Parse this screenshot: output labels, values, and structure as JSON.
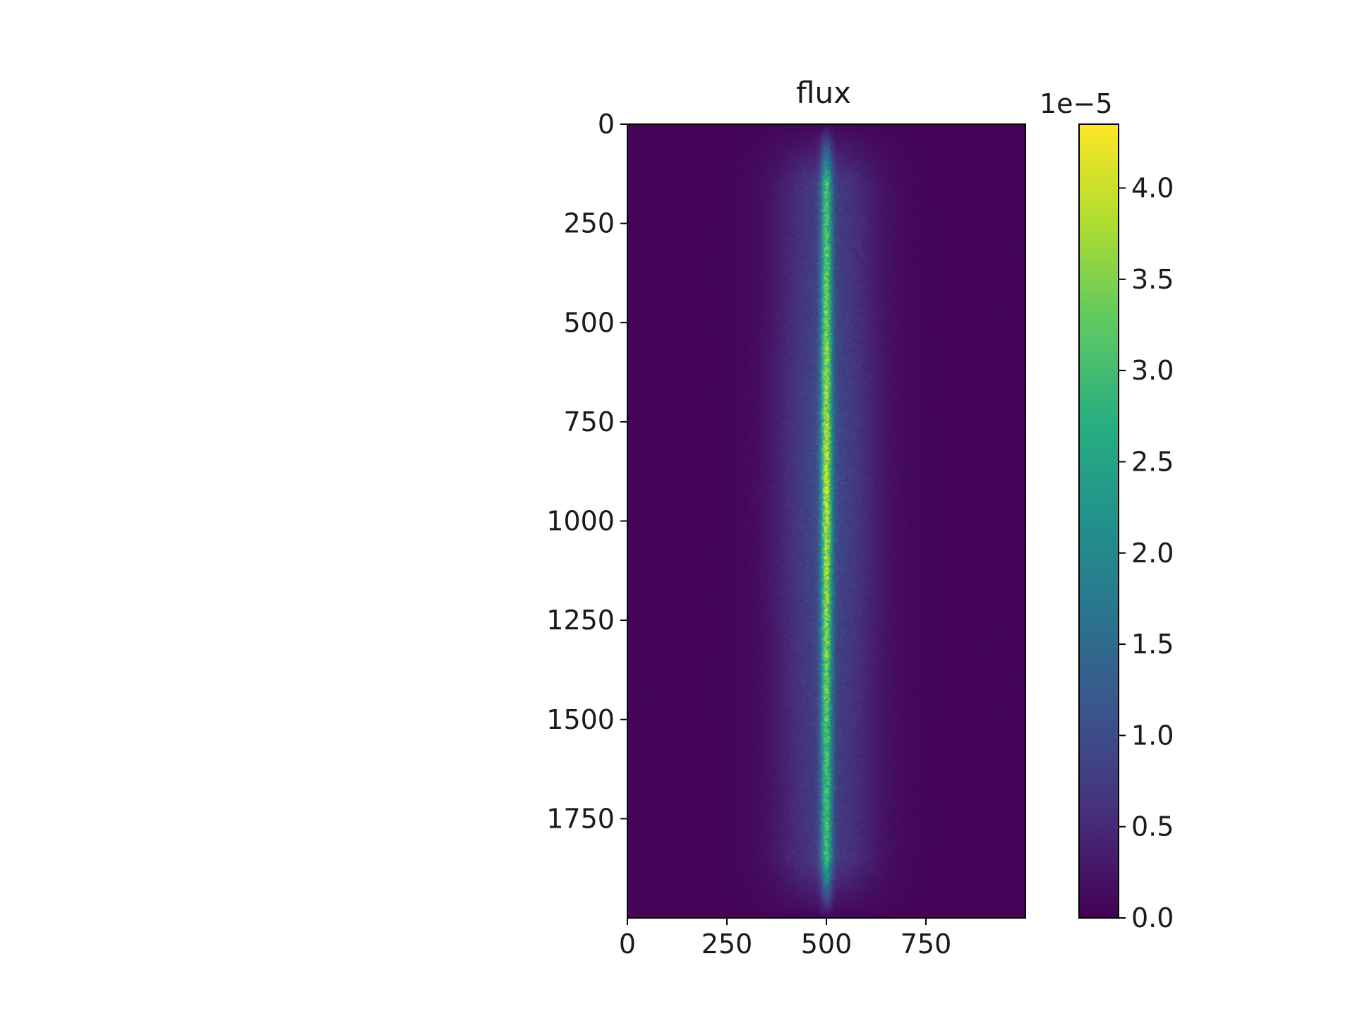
{
  "chart_data": {
    "type": "heatmap",
    "title": "flux",
    "xlabel": "",
    "ylabel": "",
    "image_shape": [
      2000,
      1000
    ],
    "xlim": [
      0,
      1000
    ],
    "ylim": [
      2000,
      0
    ],
    "y_inverted": true,
    "x_ticks": [
      0,
      250,
      500,
      750
    ],
    "x_tick_labels": [
      "0",
      "250",
      "500",
      "750"
    ],
    "y_ticks": [
      0,
      250,
      500,
      750,
      1000,
      1250,
      1500,
      1750
    ],
    "y_tick_labels": [
      "0",
      "250",
      "500",
      "750",
      "1000",
      "1250",
      "1500",
      "1750"
    ],
    "colormap": "viridis",
    "colorbar": {
      "min": 0.0,
      "max": 4.35,
      "ticks": [
        0.0,
        0.5,
        1.0,
        1.5,
        2.0,
        2.5,
        3.0,
        3.5,
        4.0
      ],
      "tick_labels": [
        "0.0",
        "0.5",
        "1.0",
        "1.5",
        "2.0",
        "2.5",
        "3.0",
        "3.5",
        "4.0"
      ],
      "offset_label": "1e−5"
    },
    "feature": {
      "description_of_values": "narrow vertical bright streak with wide diffuse halo",
      "center_x": 500,
      "core_peak": 2.9,
      "core_sigma_x": 10,
      "halo_peak": 0.95,
      "halo_sigma_x": 85,
      "row_start": 0,
      "row_end": 2000,
      "brightest_row": 900,
      "background": 0.05
    }
  }
}
